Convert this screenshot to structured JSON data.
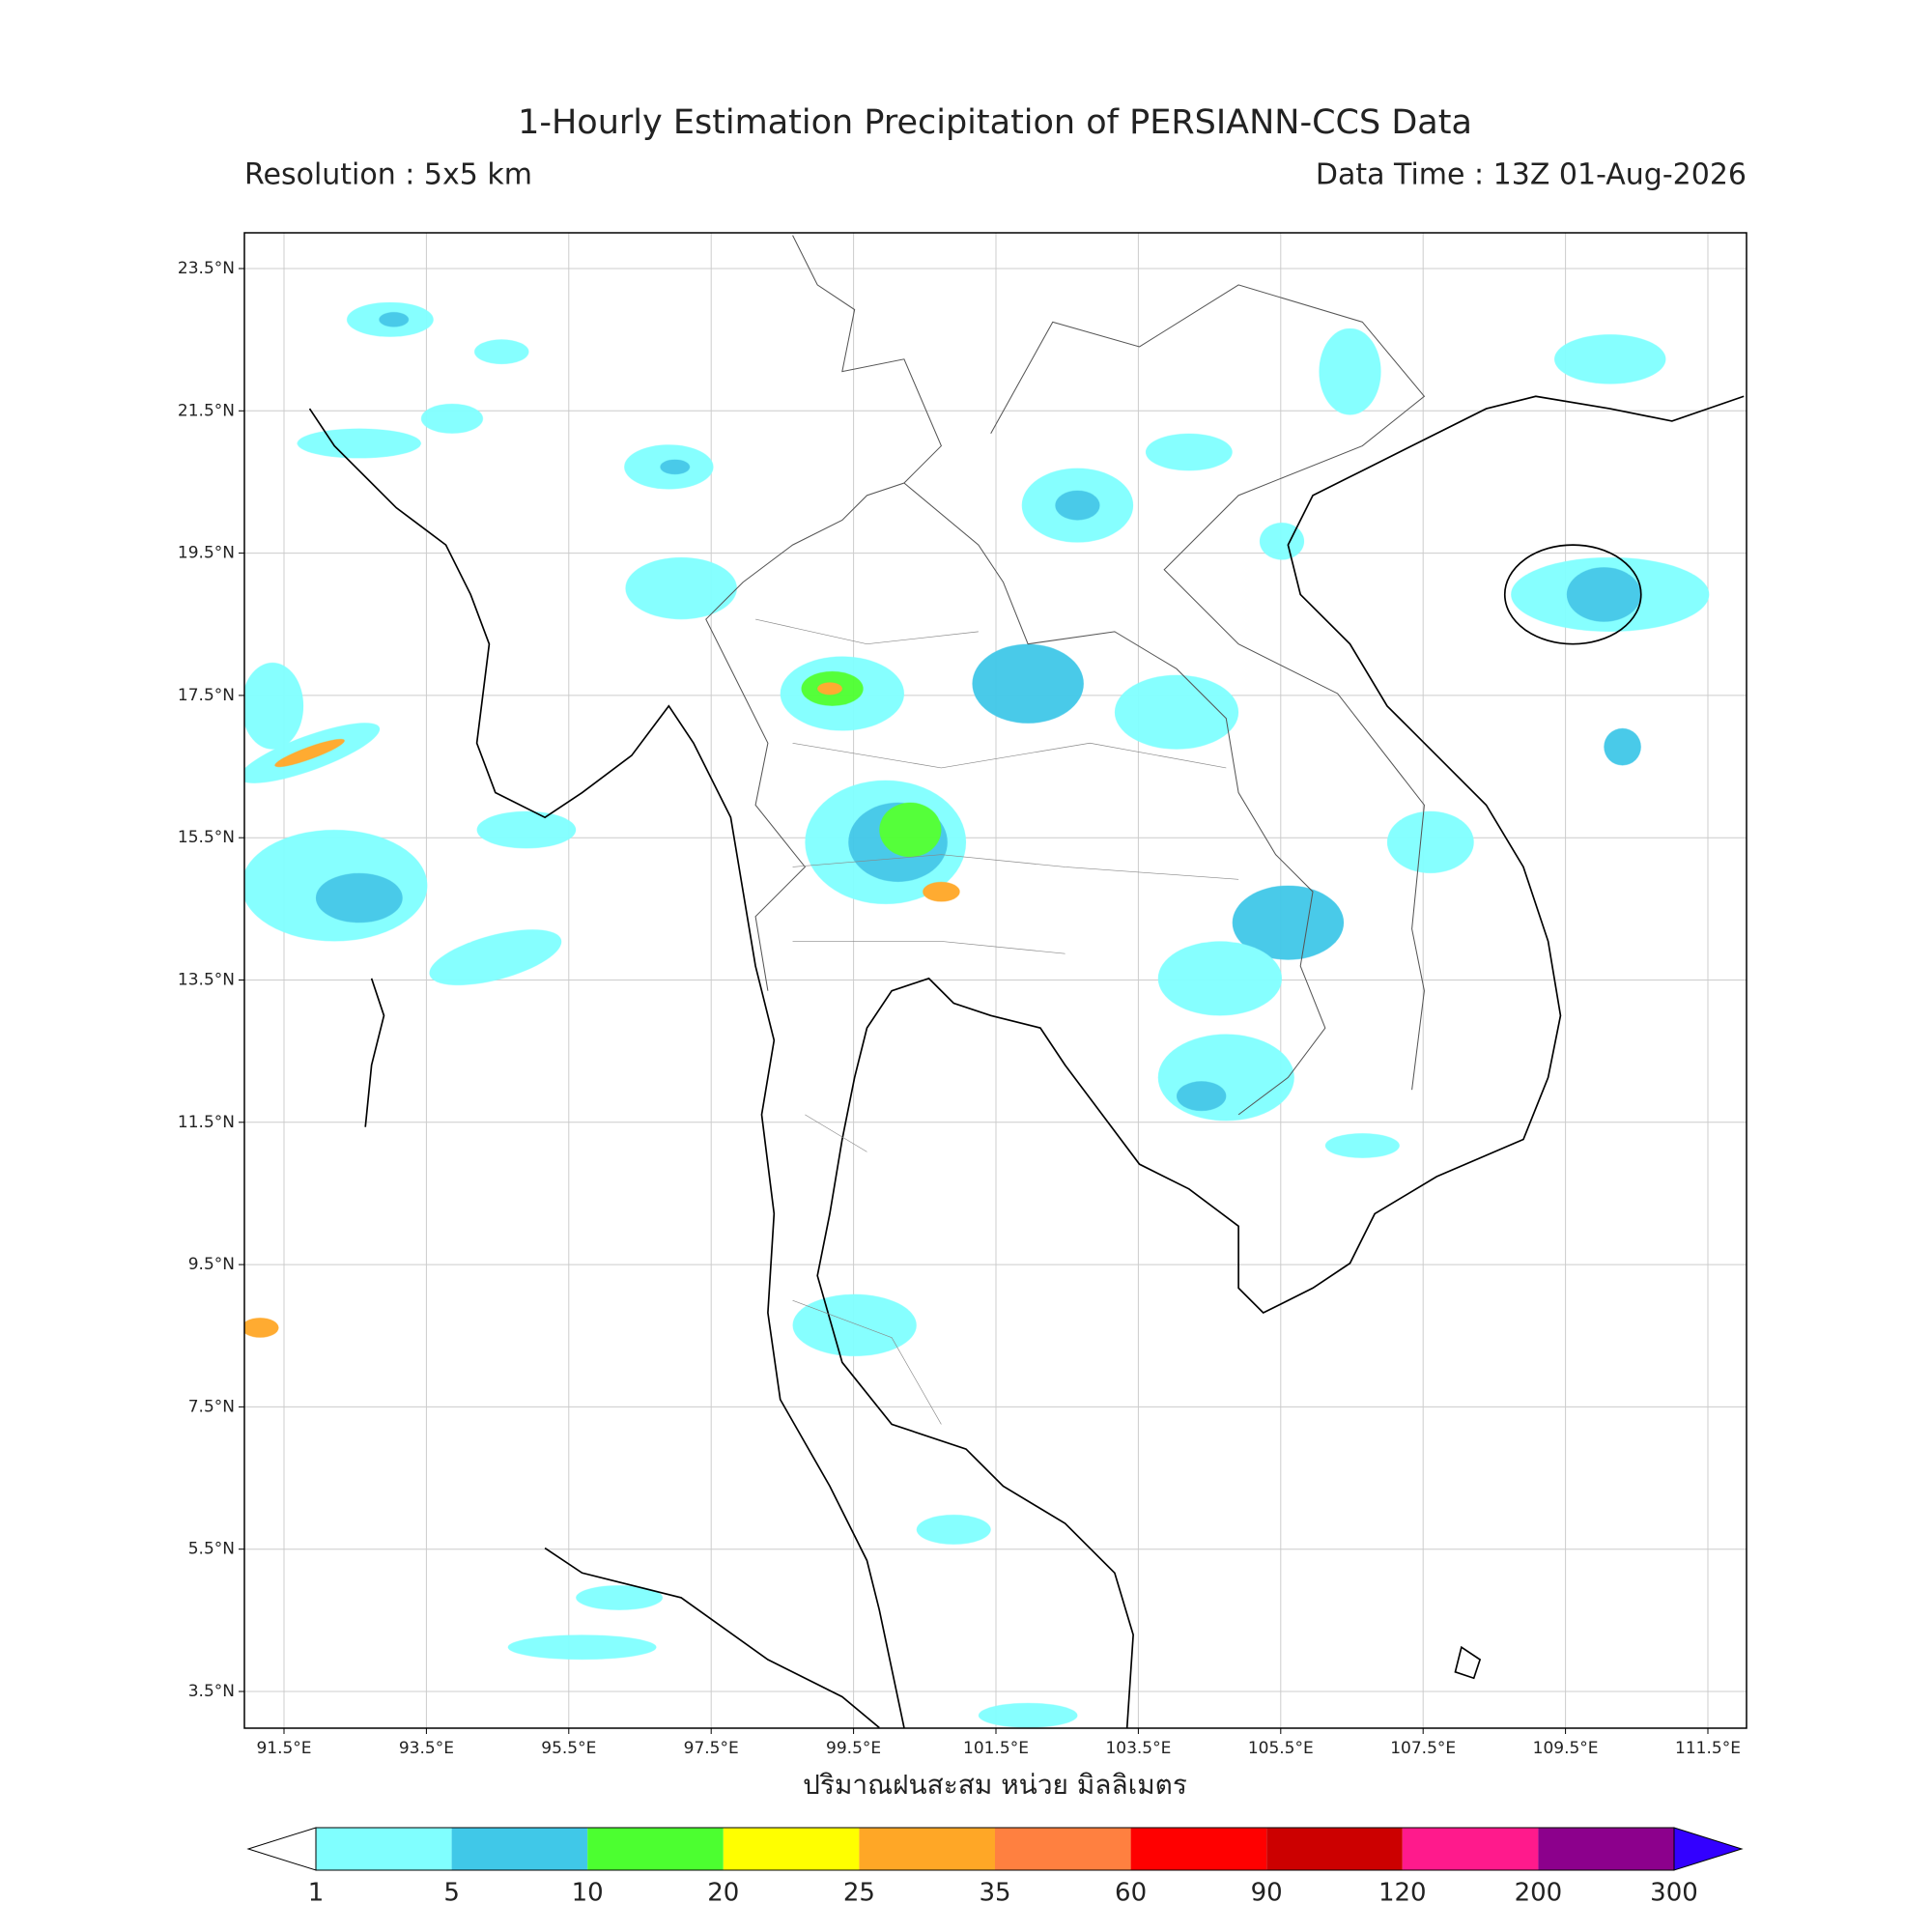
{
  "title": "1-Hourly Estimation Precipitation of PERSIANN-CCS Data",
  "resolution": "Resolution : 5x5 km",
  "data_time": "Data Time : 13Z 01-Aug-2026",
  "map": {
    "lat_ticks": [
      {
        "value": 23.5,
        "label": "23.5°N"
      },
      {
        "value": 21.5,
        "label": "21.5°N"
      },
      {
        "value": 19.5,
        "label": "19.5°N"
      },
      {
        "value": 17.5,
        "label": "17.5°N"
      },
      {
        "value": 15.5,
        "label": "15.5°N"
      },
      {
        "value": 13.5,
        "label": "13.5°N"
      },
      {
        "value": 11.5,
        "label": "11.5°N"
      },
      {
        "value": 9.5,
        "label": "9.5°N"
      },
      {
        "value": 7.5,
        "label": "7.5°N"
      },
      {
        "value": 5.5,
        "label": "5.5°N"
      },
      {
        "value": 3.5,
        "label": "3.5°N"
      }
    ],
    "lon_ticks": [
      {
        "value": 91.5,
        "label": "91.5°E"
      },
      {
        "value": 93.5,
        "label": "93.5°E"
      },
      {
        "value": 95.5,
        "label": "95.5°E"
      },
      {
        "value": 97.5,
        "label": "97.5°E"
      },
      {
        "value": 99.5,
        "label": "99.5°E"
      },
      {
        "value": 101.5,
        "label": "101.5°E"
      },
      {
        "value": 103.5,
        "label": "103.5°E"
      },
      {
        "value": 105.5,
        "label": "105.5°E"
      },
      {
        "value": 107.5,
        "label": "107.5°E"
      },
      {
        "value": 109.5,
        "label": "109.5°E"
      },
      {
        "value": 111.5,
        "label": "111.5°E"
      }
    ],
    "grid": true
  },
  "colorbar": {
    "label": "ปริมาณฝนสะสม หน่วย มิลลิเมตร",
    "levels": [
      1,
      5,
      10,
      20,
      25,
      35,
      60,
      90,
      120,
      200,
      300
    ],
    "colors": [
      "#80ffff",
      "#40c8e8",
      "#4cff30",
      "#ffff00",
      "#ffa726",
      "#ff8040",
      "#ff0000",
      "#cc0000",
      "#ff1a8c",
      "#8c008c"
    ],
    "under_color": "#ffffff",
    "over_color": "#3300ff"
  }
}
